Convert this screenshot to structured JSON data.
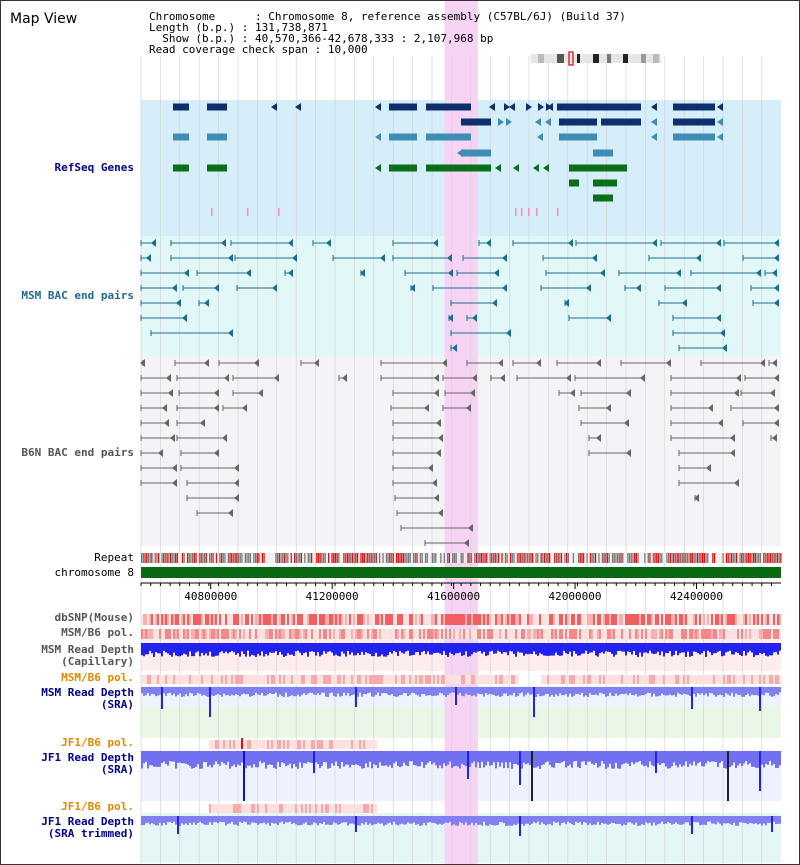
{
  "page_title": "Map View",
  "info": {
    "chromosome_label": "Chromosome",
    "chromosome_value": "Chromosome 8, reference assembly (C57BL/6J) (Build 37)",
    "length_label": "Length (b.p.)",
    "length_value": "131,738,871",
    "show_label": "Show (b.p.)",
    "show_value": "40,570,366-42,678,333 : 2,107,968 bp",
    "span_label": "Read coverage check span",
    "span_value": "10,000"
  },
  "tracks": {
    "refseq": "RefSeq Genes",
    "msm_bac": "MSM BAC end pairs",
    "b6n_bac": "B6N BAC end pairs",
    "repeat": "Repeat",
    "chromosome": "chromosome 8",
    "dbsnp": "dbSNP(Mouse)",
    "msm_b6_pol_1": "MSM/B6 pol.",
    "msm_read_depth_cap_1": "MSM Read Depth",
    "msm_read_depth_cap_2": "(Capillary)",
    "msm_b6_pol_2": "MSM/B6 pol.",
    "msm_read_depth_sra_1": "MSM Read Depth",
    "msm_read_depth_sra_2": "(SRA)",
    "jf1_b6_pol_1": "JF1/B6 pol.",
    "jf1_read_depth_sra_1": "JF1 Read Depth",
    "jf1_read_depth_sra_2": "(SRA)",
    "jf1_b6_pol_2": "JF1/B6 pol.",
    "jf1_read_depth_trim_1": "JF1 Read Depth",
    "jf1_read_depth_trim_2": "(SRA trimmed)"
  },
  "axis": {
    "start_bp": 40570366,
    "end_bp": 42678333,
    "ticks": [
      "40800000",
      "41200000",
      "41600000",
      "42000000",
      "42400000"
    ],
    "highlight_start_bp": 41570000,
    "highlight_end_bp": 41680000
  },
  "colors": {
    "refseq_bg": "#d6eef9",
    "msm_bg": "#e2f7f7",
    "b6n_bg": "#f4f4f8",
    "highlight": "#f7d4f4",
    "gene_dark": "#0d2f6e",
    "gene_mid": "#3d8db4",
    "gene_green": "#0a6e1a",
    "msm_line": "#1c6e8e",
    "b6n_line": "#666666",
    "repeat_red": "#dd1111",
    "chromosome_green": "#0a6a12",
    "depth_blue": "#2222ee",
    "label_blue": "#00008b",
    "label_orange": "#e08a00",
    "label_msm": "#236b8e"
  }
}
